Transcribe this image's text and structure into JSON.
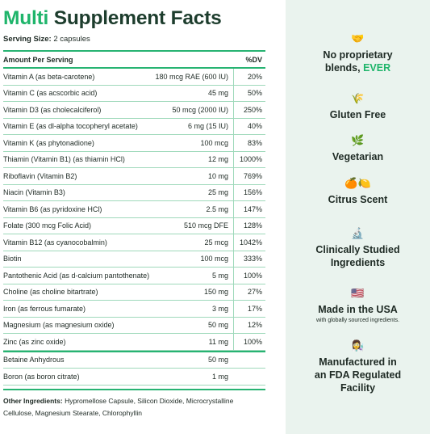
{
  "title": {
    "accent": "Multi",
    "rest": "Supplement Facts"
  },
  "serving": {
    "label": "Serving Size:",
    "value": "2 capsules"
  },
  "table": {
    "header": {
      "amount": "Amount Per Serving",
      "dv": "%DV"
    },
    "rows": [
      {
        "name": "Vitamin A (as beta-carotene)",
        "amount": "180 mcg RAE (600 IU)",
        "dv": "20%"
      },
      {
        "name": "Vitamin C (as acscorbic acid)",
        "amount": "45 mg",
        "dv": "50%"
      },
      {
        "name": "Vitamin D3 (as cholecalciferol)",
        "amount": "50 mcg (2000 IU)",
        "dv": "250%"
      },
      {
        "name": "Vitamin E (as dl-alpha tocopheryl acetate)",
        "amount": "6 mg (15 IU)",
        "dv": "40%"
      },
      {
        "name": "Vitamin K (as phytonadione)",
        "amount": "100 mcg",
        "dv": "83%"
      },
      {
        "name": "Thiamin (Vitamin B1) (as thiamin HCl)",
        "amount": "12 mg",
        "dv": "1000%"
      },
      {
        "name": "Riboflavin (Vitamin B2)",
        "amount": "10 mg",
        "dv": "769%"
      },
      {
        "name": "Niacin (Vitamin B3)",
        "amount": "25 mg",
        "dv": "156%"
      },
      {
        "name": "Vitamin B6 (as pyridoxine HCl)",
        "amount": "2.5 mg",
        "dv": "147%"
      },
      {
        "name": "Folate (300 mcg Folic Acid)",
        "amount": "510 mcg DFE",
        "dv": "128%"
      },
      {
        "name": "Vitamin B12 (as cyanocobalmin)",
        "amount": "25 mcg",
        "dv": "1042%"
      },
      {
        "name": "Biotin",
        "amount": "100 mcg",
        "dv": "333%"
      },
      {
        "name": "Pantothenic Acid (as d-calcium pantothenate)",
        "amount": "5 mg",
        "dv": "100%"
      },
      {
        "name": "Choline (as choline bitartrate)",
        "amount": "150 mg",
        "dv": "27%"
      },
      {
        "name": "Iron (as ferrous fumarate)",
        "amount": "3 mg",
        "dv": "17%"
      },
      {
        "name": "Magnesium (as magnesium oxide)",
        "amount": "50 mg",
        "dv": "12%"
      },
      {
        "name": "Zinc (as zinc oxide)",
        "amount": "11 mg",
        "dv": "100%"
      }
    ],
    "extra_rows": [
      {
        "name": "Betaine Anhydrous",
        "amount": "50 mg"
      },
      {
        "name": "Boron (as boron citrate)",
        "amount": "1 mg"
      }
    ]
  },
  "other_ingredients": {
    "label": "Other Ingredients:",
    "text": "Hypromellose Capsule, Silicon Dioxide, Microcrystalline Cellulose, Magnesium Stearate, Chlorophyllin"
  },
  "badges": [
    {
      "icon": "handshake-icon",
      "glyph": "🤝",
      "line1": "No proprietary",
      "line2": "blends,",
      "highlight": "EVER"
    },
    {
      "icon": "wheat-icon",
      "glyph": "🌾",
      "line1": "Gluten Free"
    },
    {
      "icon": "leaf-icon",
      "glyph": "🌿",
      "line1": "Vegetarian"
    },
    {
      "icon": "citrus-icon",
      "glyph": "🍊🍋",
      "line1": "Citrus Scent"
    },
    {
      "icon": "microscope-icon",
      "glyph": "🔬",
      "line1": "Clinically Studied",
      "line2": "Ingredients"
    },
    {
      "icon": "us-flag-icon",
      "glyph": "🇺🇸",
      "line1": "Made in the USA",
      "sub": "with globally sourced ingredients."
    },
    {
      "icon": "scientist-icon",
      "glyph": "👩‍🔬",
      "line1": "Manufactured in",
      "line2": "an FDA Regulated",
      "line3": "Facility"
    }
  ],
  "colors": {
    "accent": "#1fb56b",
    "title_dark": "#1d3d2d",
    "panel_bg": "#eaf3ee",
    "rule": "#27b372"
  }
}
